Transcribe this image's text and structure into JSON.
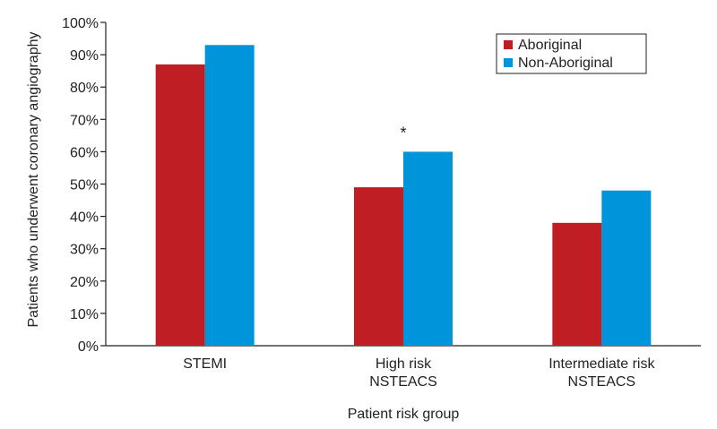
{
  "chart_data": {
    "type": "bar",
    "categories": [
      [
        "STEMI"
      ],
      [
        "High risk",
        "NSTEACS"
      ],
      [
        "Intermediate risk",
        "NSTEACS"
      ]
    ],
    "series": [
      {
        "name": "Aboriginal",
        "color": "#be1e24",
        "values": [
          87,
          49,
          38
        ]
      },
      {
        "name": "Non-Aboriginal",
        "color": "#0095da",
        "values": [
          93,
          60,
          48
        ]
      }
    ],
    "xlabel": "Patient risk group",
    "ylabel": "Patients who underwent coronary angiography",
    "ylim": [
      0,
      100
    ],
    "yticks": [
      "0%",
      "10%",
      "20%",
      "30%",
      "40%",
      "50%",
      "60%",
      "70%",
      "80%",
      "90%",
      "100%"
    ],
    "legend_position": "top-right",
    "grid": false,
    "annotations": [
      {
        "text": "*",
        "category_index": 1
      }
    ]
  }
}
